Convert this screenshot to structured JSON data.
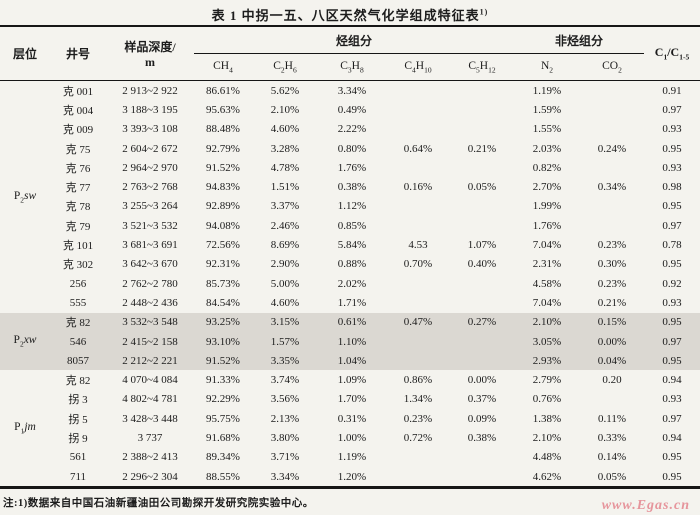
{
  "title": {
    "text": "表 1  中拐一五、八区天然气化学组成特征表",
    "superscript": "1)"
  },
  "table": {
    "header": {
      "col_layer": "层位",
      "col_well": "井号",
      "col_depth_line1": "样品深度/",
      "col_depth_line2": "m",
      "group_hydrocarbon": "烃组分",
      "group_nonhydrocarbon": "非烃组分",
      "formulas": {
        "ch4": [
          {
            "t": "CH"
          },
          {
            "t": "4",
            "sub": true
          }
        ],
        "c2h6": [
          {
            "t": "C"
          },
          {
            "t": "2",
            "sub": true
          },
          {
            "t": "H"
          },
          {
            "t": "6",
            "sub": true
          }
        ],
        "c3h8": [
          {
            "t": "C"
          },
          {
            "t": "3",
            "sub": true
          },
          {
            "t": "H"
          },
          {
            "t": "8",
            "sub": true
          }
        ],
        "c4h10": [
          {
            "t": "C"
          },
          {
            "t": "4",
            "sub": true
          },
          {
            "t": "H"
          },
          {
            "t": "10",
            "sub": true
          }
        ],
        "c5h12": [
          {
            "t": "C"
          },
          {
            "t": "5",
            "sub": true
          },
          {
            "t": "H"
          },
          {
            "t": "12",
            "sub": true
          }
        ],
        "n2": [
          {
            "t": "N"
          },
          {
            "t": "2",
            "sub": true
          }
        ],
        "co2": [
          {
            "t": "CO"
          },
          {
            "t": "2",
            "sub": true
          }
        ],
        "ratio": [
          {
            "t": "C"
          },
          {
            "t": "1",
            "sub": true
          },
          {
            "t": "/C"
          },
          {
            "t": "1-5",
            "sub": true
          }
        ]
      }
    },
    "sections": [
      {
        "layer": [
          {
            "t": "P"
          },
          {
            "t": "2",
            "sub": true
          },
          {
            "t": "sw",
            "it": true
          }
        ],
        "shaded": false,
        "rows": [
          {
            "well": "克 001",
            "depth": "2 913~2 922",
            "ch4": "86.61%",
            "c2h6": "5.62%",
            "c3h8": "3.34%",
            "c4h10": "",
            "c5h12": "",
            "n2": "1.19%",
            "co2": "",
            "ratio": "0.91"
          },
          {
            "well": "克 004",
            "depth": "3 188~3 195",
            "ch4": "95.63%",
            "c2h6": "2.10%",
            "c3h8": "0.49%",
            "c4h10": "",
            "c5h12": "",
            "n2": "1.59%",
            "co2": "",
            "ratio": "0.97"
          },
          {
            "well": "克 009",
            "depth": "3 393~3 108",
            "ch4": "88.48%",
            "c2h6": "4.60%",
            "c3h8": "2.22%",
            "c4h10": "",
            "c5h12": "",
            "n2": "1.55%",
            "co2": "",
            "ratio": "0.93"
          },
          {
            "well": "克 75",
            "depth": "2 604~2 672",
            "ch4": "92.79%",
            "c2h6": "3.28%",
            "c3h8": "0.80%",
            "c4h10": "0.64%",
            "c5h12": "0.21%",
            "n2": "2.03%",
            "co2": "0.24%",
            "ratio": "0.95"
          },
          {
            "well": "克 76",
            "depth": "2 964~2 970",
            "ch4": "91.52%",
            "c2h6": "4.78%",
            "c3h8": "1.76%",
            "c4h10": "",
            "c5h12": "",
            "n2": "0.82%",
            "co2": "",
            "ratio": "0.93"
          },
          {
            "well": "克 77",
            "depth": "2 763~2 768",
            "ch4": "94.83%",
            "c2h6": "1.51%",
            "c3h8": "0.38%",
            "c4h10": "0.16%",
            "c5h12": "0.05%",
            "n2": "2.70%",
            "co2": "0.34%",
            "ratio": "0.98"
          },
          {
            "well": "克 78",
            "depth": "3 255~3 264",
            "ch4": "92.89%",
            "c2h6": "3.37%",
            "c3h8": "1.12%",
            "c4h10": "",
            "c5h12": "",
            "n2": "1.99%",
            "co2": "",
            "ratio": "0.95"
          },
          {
            "well": "克 79",
            "depth": "3 521~3 532",
            "ch4": "94.08%",
            "c2h6": "2.46%",
            "c3h8": "0.85%",
            "c4h10": "",
            "c5h12": "",
            "n2": "1.76%",
            "co2": "",
            "ratio": "0.97"
          },
          {
            "well": "克 101",
            "depth": "3 681~3 691",
            "ch4": "72.56%",
            "c2h6": "8.69%",
            "c3h8": "5.84%",
            "c4h10": "4.53",
            "c5h12": "1.07%",
            "n2": "7.04%",
            "co2": "0.23%",
            "ratio": "0.78"
          },
          {
            "well": "克 302",
            "depth": "3 642~3 670",
            "ch4": "92.31%",
            "c2h6": "2.90%",
            "c3h8": "0.88%",
            "c4h10": "0.70%",
            "c5h12": "0.40%",
            "n2": "2.31%",
            "co2": "0.30%",
            "ratio": "0.95"
          },
          {
            "well": "256",
            "depth": "2 762~2 780",
            "ch4": "85.73%",
            "c2h6": "5.00%",
            "c3h8": "2.02%",
            "c4h10": "",
            "c5h12": "",
            "n2": "4.58%",
            "co2": "0.23%",
            "ratio": "0.92"
          },
          {
            "well": "555",
            "depth": "2 448~2 436",
            "ch4": "84.54%",
            "c2h6": "4.60%",
            "c3h8": "1.71%",
            "c4h10": "",
            "c5h12": "",
            "n2": "7.04%",
            "co2": "0.21%",
            "ratio": "0.93"
          }
        ]
      },
      {
        "layer": [
          {
            "t": "P"
          },
          {
            "t": "2",
            "sub": true
          },
          {
            "t": "xw",
            "it": true
          }
        ],
        "shaded": true,
        "rows": [
          {
            "well": "克 82",
            "depth": "3 532~3 548",
            "ch4": "93.25%",
            "c2h6": "3.15%",
            "c3h8": "0.61%",
            "c4h10": "0.47%",
            "c5h12": "0.27%",
            "n2": "2.10%",
            "co2": "0.15%",
            "ratio": "0.95"
          },
          {
            "well": "546",
            "depth": "2 415~2 158",
            "ch4": "93.10%",
            "c2h6": "1.57%",
            "c3h8": "1.10%",
            "c4h10": "",
            "c5h12": "",
            "n2": "3.05%",
            "co2": "0.00%",
            "ratio": "0.97"
          },
          {
            "well": "8057",
            "depth": "2 212~2 221",
            "ch4": "91.52%",
            "c2h6": "3.35%",
            "c3h8": "1.04%",
            "c4h10": "",
            "c5h12": "",
            "n2": "2.93%",
            "co2": "0.04%",
            "ratio": "0.95"
          }
        ]
      },
      {
        "layer": [
          {
            "t": "P"
          },
          {
            "t": "1",
            "sub": true
          },
          {
            "t": "jm",
            "it": true
          }
        ],
        "shaded": false,
        "rows": [
          {
            "well": "克 82",
            "depth": "4 070~4 084",
            "ch4": "91.33%",
            "c2h6": "3.74%",
            "c3h8": "1.09%",
            "c4h10": "0.86%",
            "c5h12": "0.00%",
            "n2": "2.79%",
            "co2": "0.20",
            "ratio": "0.94"
          },
          {
            "well": "拐 3",
            "depth": "4 802~4 781",
            "ch4": "92.29%",
            "c2h6": "3.56%",
            "c3h8": "1.70%",
            "c4h10": "1.34%",
            "c5h12": "0.37%",
            "n2": "0.76%",
            "co2": "",
            "ratio": "0.93"
          },
          {
            "well": "拐 5",
            "depth": "3 428~3 448",
            "ch4": "95.75%",
            "c2h6": "2.13%",
            "c3h8": "0.31%",
            "c4h10": "0.23%",
            "c5h12": "0.09%",
            "n2": "1.38%",
            "co2": "0.11%",
            "ratio": "0.97"
          },
          {
            "well": "拐 9",
            "depth": "3 737",
            "ch4": "91.68%",
            "c2h6": "3.80%",
            "c3h8": "1.00%",
            "c4h10": "0.72%",
            "c5h12": "0.38%",
            "n2": "2.10%",
            "co2": "0.33%",
            "ratio": "0.94"
          },
          {
            "well": "561",
            "depth": "2 388~2 413",
            "ch4": "89.34%",
            "c2h6": "3.71%",
            "c3h8": "1.19%",
            "c4h10": "",
            "c5h12": "",
            "n2": "4.48%",
            "co2": "0.14%",
            "ratio": "0.95"
          },
          {
            "well": "711",
            "depth": "2 296~2 304",
            "ch4": "88.55%",
            "c2h6": "3.34%",
            "c3h8": "1.20%",
            "c4h10": "",
            "c5h12": "",
            "n2": "4.62%",
            "co2": "0.05%",
            "ratio": "0.95"
          }
        ]
      }
    ]
  },
  "footnote": "注:1)数据来自中国石油新疆油田公司勘探开发研究院实验中心。",
  "watermark": "www.Egas.cn",
  "colors": {
    "shade": "#dbd8d2",
    "watermark": "#e6959c",
    "line": "#161616"
  }
}
